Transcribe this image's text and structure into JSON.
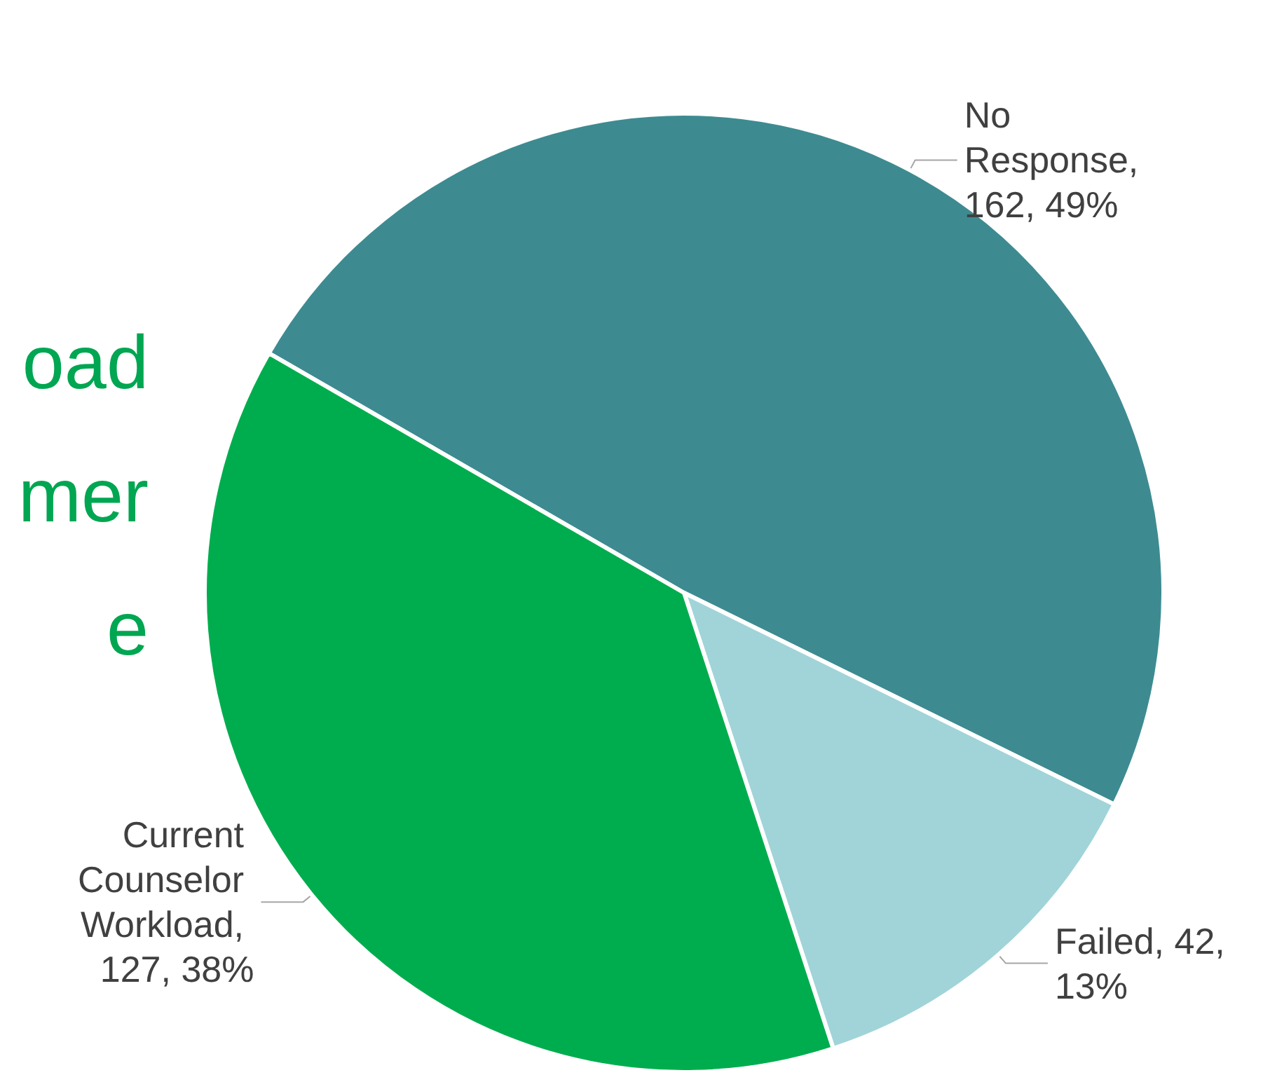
{
  "chart_data": {
    "type": "pie",
    "categories": [
      "No Response",
      "Failed",
      "Current Counselor Workload"
    ],
    "values": [
      162,
      42,
      127
    ],
    "value_labels": [
      ", 162, 49%",
      ", 42, 13%",
      ", 127, 38%"
    ],
    "colors": [
      "#3d8b91",
      "#a0d4d8",
      "#00ad4e"
    ],
    "annotations": [
      "oad",
      "mer",
      "e"
    ]
  }
}
